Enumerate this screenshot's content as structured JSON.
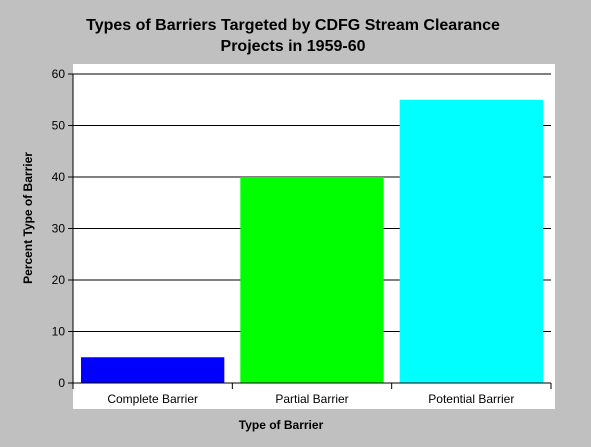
{
  "chart_data": {
    "type": "bar",
    "title_lines": [
      "Types of Barriers Targeted by CDFG Stream Clearance",
      "Projects in 1959-60"
    ],
    "xlabel": "Type of Barrier",
    "ylabel": "Percent Type of Barrier",
    "categories": [
      "Complete Barrier",
      "Partial Barrier",
      "Potential Barrier"
    ],
    "values": [
      5,
      40,
      55
    ],
    "bar_colors": [
      "#0000ff",
      "#00ff00",
      "#00ffff"
    ],
    "ylim": [
      0,
      60
    ],
    "yticks": [
      0,
      10,
      20,
      30,
      40,
      50,
      60
    ],
    "grid": true,
    "legend": "none"
  },
  "colors": {
    "background": "#c0c0c0",
    "plot_background": "#ffffff",
    "gridline": "#000000"
  }
}
